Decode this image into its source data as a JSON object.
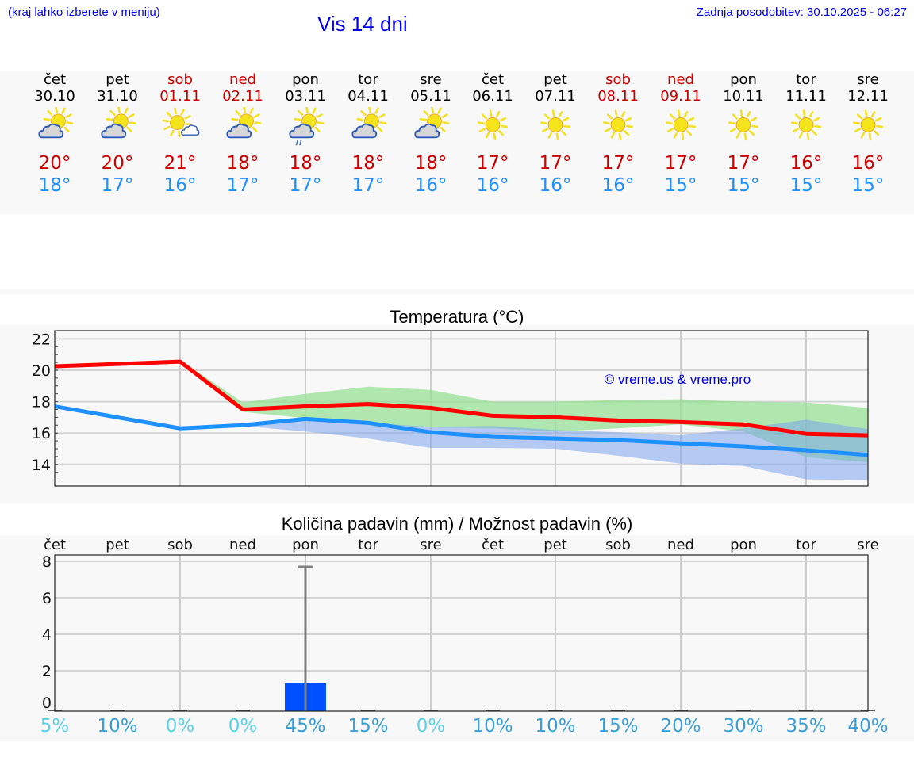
{
  "header": {
    "location_hint": "(kraj lahko izberete v meniju)",
    "title": "Vis 14 dni",
    "last_update": "Zadnja posodobitev: 30.10.2025 - 06:27"
  },
  "days": [
    {
      "name": "čet",
      "date": "30.10",
      "weekend": false,
      "icon": "partly-cloudy-icon",
      "tmax": "20°",
      "tmin": "18°"
    },
    {
      "name": "pet",
      "date": "31.10",
      "weekend": false,
      "icon": "partly-cloudy-icon",
      "tmax": "20°",
      "tmin": "17°"
    },
    {
      "name": "sob",
      "date": "01.11",
      "weekend": true,
      "icon": "mostly-sunny-icon",
      "tmax": "21°",
      "tmin": "16°"
    },
    {
      "name": "ned",
      "date": "02.11",
      "weekend": true,
      "icon": "partly-cloudy-icon",
      "tmax": "18°",
      "tmin": "17°"
    },
    {
      "name": "pon",
      "date": "03.11",
      "weekend": false,
      "icon": "partly-cloudy-rain-icon",
      "tmax": "18°",
      "tmin": "17°"
    },
    {
      "name": "tor",
      "date": "04.11",
      "weekend": false,
      "icon": "partly-cloudy-icon",
      "tmax": "18°",
      "tmin": "17°"
    },
    {
      "name": "sre",
      "date": "05.11",
      "weekend": false,
      "icon": "partly-cloudy-icon",
      "tmax": "18°",
      "tmin": "16°"
    },
    {
      "name": "čet",
      "date": "06.11",
      "weekend": false,
      "icon": "sunny-icon",
      "tmax": "17°",
      "tmin": "16°"
    },
    {
      "name": "pet",
      "date": "07.11",
      "weekend": false,
      "icon": "sunny-icon",
      "tmax": "17°",
      "tmin": "16°"
    },
    {
      "name": "sob",
      "date": "08.11",
      "weekend": true,
      "icon": "sunny-icon",
      "tmax": "17°",
      "tmin": "16°"
    },
    {
      "name": "ned",
      "date": "09.11",
      "weekend": true,
      "icon": "sunny-icon",
      "tmax": "17°",
      "tmin": "15°"
    },
    {
      "name": "pon",
      "date": "10.11",
      "weekend": false,
      "icon": "sunny-icon",
      "tmax": "17°",
      "tmin": "15°"
    },
    {
      "name": "tor",
      "date": "11.11",
      "weekend": false,
      "icon": "sunny-icon",
      "tmax": "16°",
      "tmin": "15°"
    },
    {
      "name": "sre",
      "date": "12.11",
      "weekend": false,
      "icon": "sunny-icon",
      "tmax": "16°",
      "tmin": "15°"
    }
  ],
  "colors": {
    "header_blue": "#0000ee",
    "weekend_red": "#cc0000",
    "tmax_red": "#cc0000",
    "tmin_blue": "#1e90ff",
    "line_max": "#ff0000",
    "line_min": "#1e90ff",
    "band_max": "#90e090",
    "band_min": "#7ba4ec",
    "precip_bar": "#0050ff",
    "pct_light": "#5bd0e8",
    "pct_dark": "#3a9fd6"
  },
  "chart_data": [
    {
      "type": "line",
      "title": "Temperatura (°C)",
      "xlabel": "",
      "ylabel": "",
      "ylim": [
        12.6,
        22.5
      ],
      "yticks": [
        14,
        16,
        18,
        20,
        22
      ],
      "grid": true,
      "watermark": "© vreme.us & vreme.pro",
      "categories": [
        "30.10",
        "31.10",
        "01.11",
        "02.11",
        "03.11",
        "04.11",
        "05.11",
        "06.11",
        "07.11",
        "08.11",
        "09.11",
        "10.11",
        "11.11",
        "12.11"
      ],
      "series": [
        {
          "name": "max",
          "color": "#ff0000",
          "values": [
            20.25,
            20.4,
            20.55,
            17.5,
            17.7,
            17.85,
            17.6,
            17.1,
            17.0,
            16.8,
            16.7,
            16.55,
            15.95,
            15.85
          ]
        },
        {
          "name": "min",
          "color": "#1e90ff",
          "values": [
            17.7,
            17.0,
            16.3,
            16.5,
            16.9,
            16.65,
            16.05,
            15.75,
            15.65,
            15.55,
            15.35,
            15.15,
            14.9,
            14.6
          ]
        }
      ],
      "bands": [
        {
          "name": "max-range",
          "color": "#90e090",
          "upper": [
            20.35,
            20.5,
            20.65,
            17.95,
            18.5,
            18.95,
            18.75,
            18.0,
            18.0,
            18.1,
            18.15,
            18.0,
            17.95,
            17.6
          ],
          "lower": [
            20.15,
            20.3,
            20.45,
            17.35,
            16.95,
            16.6,
            16.35,
            16.3,
            16.1,
            16.3,
            16.55,
            16.1,
            14.45,
            14.15
          ]
        },
        {
          "name": "min-range",
          "color": "#7ba4ec",
          "upper": [
            17.8,
            17.1,
            16.4,
            16.6,
            16.95,
            16.65,
            16.4,
            16.45,
            16.2,
            16.05,
            15.85,
            16.3,
            16.85,
            16.25
          ],
          "lower": [
            17.6,
            16.9,
            16.2,
            16.45,
            16.1,
            15.65,
            15.05,
            15.05,
            15.0,
            14.55,
            14.05,
            13.9,
            13.05,
            13.0
          ]
        }
      ]
    },
    {
      "type": "bar",
      "title": "Količina padavin (mm) / Možnost padavin (%)",
      "xlabel": "",
      "ylabel": "",
      "ylim": [
        -0.4,
        8.2
      ],
      "yticks": [
        0,
        2,
        4,
        6,
        8
      ],
      "grid": true,
      "categories": [
        "čet",
        "pet",
        "sob",
        "ned",
        "pon",
        "tor",
        "sre",
        "čet",
        "pet",
        "sob",
        "ned",
        "pon",
        "tor",
        "sre"
      ],
      "values": [
        0,
        0,
        0,
        0,
        1.5,
        0,
        0,
        0,
        0,
        0,
        0,
        0,
        0,
        0
      ],
      "error_max": [
        0,
        0,
        0,
        0,
        7.85,
        0,
        0,
        0,
        0,
        0,
        0,
        0,
        0,
        0
      ],
      "probability_pct": [
        "5%",
        "10%",
        "0%",
        "0%",
        "45%",
        "15%",
        "0%",
        "10%",
        "10%",
        "15%",
        "20%",
        "30%",
        "35%",
        "40%"
      ],
      "probability_color": [
        "light",
        "dark",
        "light",
        "light",
        "dark",
        "dark",
        "light",
        "dark",
        "dark",
        "dark",
        "dark",
        "dark",
        "dark",
        "dark"
      ]
    }
  ]
}
